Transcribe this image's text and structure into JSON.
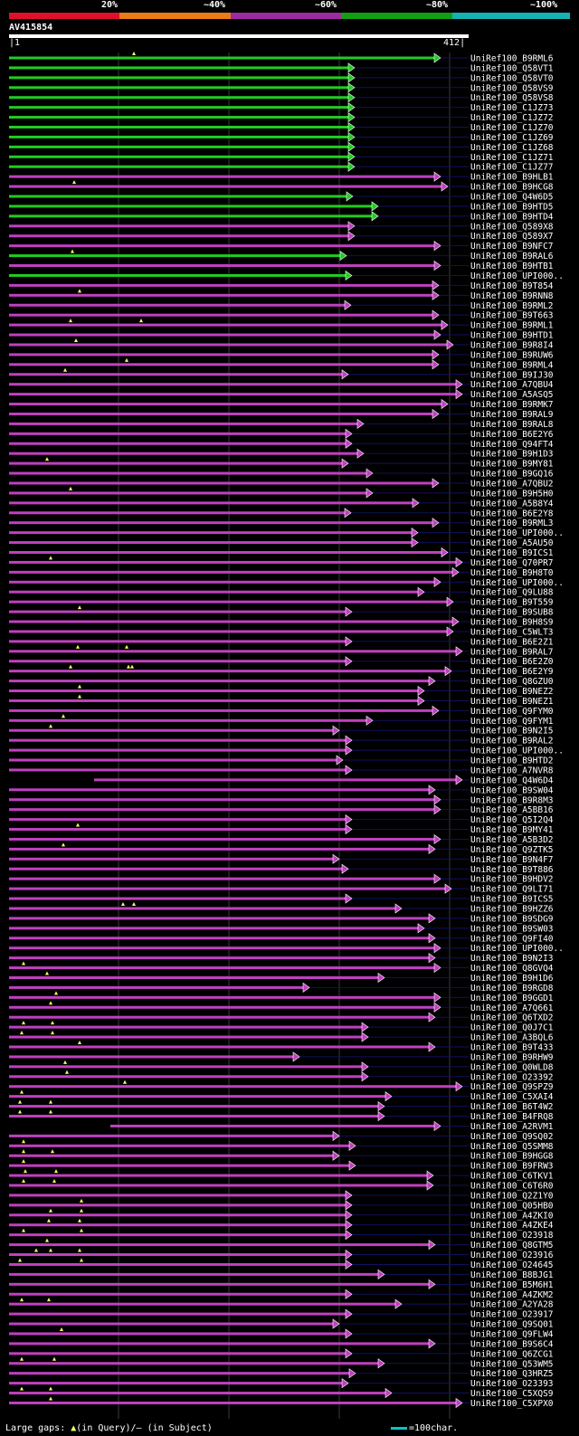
{
  "legend": {
    "labels": [
      "20%",
      "~40%",
      "~60%",
      "~80%",
      "~100%"
    ],
    "colors": [
      "#e0102a",
      "#ec7a16",
      "#9c2aa0",
      "#12a012",
      "#14b4b4"
    ]
  },
  "query": {
    "id": "AV415854",
    "start": "1",
    "end": "412"
  },
  "colors": {
    "green": "#22cc22",
    "magenta": "#c040c0",
    "gap": "#ffff66",
    "dim": "#101060"
  },
  "hits": [
    {
      "id": "UniRef100_B9RML6",
      "c": "g",
      "e": 480,
      "t": [
        148
      ]
    },
    {
      "id": "UniRef100_Q58VT1",
      "c": "g",
      "e": 385
    },
    {
      "id": "UniRef100_Q58VT0",
      "c": "g",
      "e": 385
    },
    {
      "id": "UniRef100_Q58VS9",
      "c": "g",
      "e": 385
    },
    {
      "id": "UniRef100_Q58VS8",
      "c": "g",
      "e": 385
    },
    {
      "id": "UniRef100_C1JZ73",
      "c": "g",
      "e": 385
    },
    {
      "id": "UniRef100_C1JZ72",
      "c": "g",
      "e": 385
    },
    {
      "id": "UniRef100_C1JZ70",
      "c": "g",
      "e": 385
    },
    {
      "id": "UniRef100_C1JZ69",
      "c": "g",
      "e": 385
    },
    {
      "id": "UniRef100_C1JZ68",
      "c": "g",
      "e": 385
    },
    {
      "id": "UniRef100_C1JZ71",
      "c": "g",
      "e": 385
    },
    {
      "id": "UniRef100_C1JZ77",
      "c": "g",
      "e": 385
    },
    {
      "id": "UniRef100_B9HLB1",
      "c": "m",
      "e": 480
    },
    {
      "id": "UniRef100_B9HCG8",
      "c": "m",
      "e": 488,
      "t": [
        82
      ]
    },
    {
      "id": "UniRef100_Q4W6D5",
      "c": "g",
      "e": 383
    },
    {
      "id": "UniRef100_B9HTD5",
      "c": "g",
      "e": 411
    },
    {
      "id": "UniRef100_B9HTD4",
      "c": "g",
      "e": 411
    },
    {
      "id": "UniRef100_Q589X8",
      "c": "m",
      "e": 385
    },
    {
      "id": "UniRef100_Q589X7",
      "c": "m",
      "e": 385
    },
    {
      "id": "UniRef100_B9NFC7",
      "c": "m",
      "e": 480
    },
    {
      "id": "UniRef100_B9RAL6",
      "c": "g",
      "e": 376,
      "t": [
        80
      ]
    },
    {
      "id": "UniRef100_B9HTB1",
      "c": "m",
      "e": 480
    },
    {
      "id": "UniRef100_UPI000..",
      "c": "g",
      "e": 382
    },
    {
      "id": "UniRef100_B9T854",
      "c": "m",
      "e": 478
    },
    {
      "id": "UniRef100_B9RNN8",
      "c": "m",
      "e": 478,
      "t": [
        88
      ]
    },
    {
      "id": "UniRef100_B9RML2",
      "c": "m",
      "e": 381
    },
    {
      "id": "UniRef100_B9T663",
      "c": "m",
      "e": 478
    },
    {
      "id": "UniRef100_B9RML1",
      "c": "m",
      "e": 488,
      "t": [
        78,
        156
      ]
    },
    {
      "id": "UniRef100_B9HTD1",
      "c": "m",
      "e": 480
    },
    {
      "id": "UniRef100_B9R8I4",
      "c": "m",
      "e": 494,
      "t": [
        84
      ]
    },
    {
      "id": "UniRef100_B9RUW6",
      "c": "m",
      "e": 478
    },
    {
      "id": "UniRef100_B9RML4",
      "c": "m",
      "e": 478,
      "t": [
        140
      ]
    },
    {
      "id": "UniRef100_B9IJ30",
      "c": "m",
      "e": 378,
      "t": [
        72
      ]
    },
    {
      "id": "UniRef100_A7QBU4",
      "c": "m",
      "e": 504
    },
    {
      "id": "UniRef100_A5ASQ5",
      "c": "m",
      "e": 504
    },
    {
      "id": "UniRef100_B9RMK7",
      "c": "m",
      "e": 488
    },
    {
      "id": "UniRef100_B9RAL9",
      "c": "m",
      "e": 478
    },
    {
      "id": "UniRef100_B9RAL8",
      "c": "m",
      "e": 395
    },
    {
      "id": "UniRef100_B6E2Y6",
      "c": "m",
      "e": 382
    },
    {
      "id": "UniRef100_Q94FT4",
      "c": "m",
      "e": 382
    },
    {
      "id": "UniRef100_B9H1D3",
      "c": "m",
      "e": 395
    },
    {
      "id": "UniRef100_B9MY81",
      "c": "m",
      "e": 378,
      "t": [
        52
      ]
    },
    {
      "id": "UniRef100_B9GQ16",
      "c": "m",
      "e": 405
    },
    {
      "id": "UniRef100_A7QBU2",
      "c": "m",
      "e": 478
    },
    {
      "id": "UniRef100_B9H5H0",
      "c": "m",
      "e": 405,
      "t": [
        78
      ]
    },
    {
      "id": "UniRef100_A5B8Y4",
      "c": "m",
      "e": 456
    },
    {
      "id": "UniRef100_B6E2Y8",
      "c": "m",
      "e": 381
    },
    {
      "id": "UniRef100_B9RML3",
      "c": "m",
      "e": 478
    },
    {
      "id": "UniRef100_UPI000..",
      "c": "m",
      "e": 455
    },
    {
      "id": "UniRef100_A5AU50",
      "c": "m",
      "e": 455
    },
    {
      "id": "UniRef100_B9ICS1",
      "c": "m",
      "e": 488
    },
    {
      "id": "UniRef100_Q70PR7",
      "c": "m",
      "e": 504,
      "t": [
        56
      ]
    },
    {
      "id": "UniRef100_B9H8T0",
      "c": "m",
      "e": 500
    },
    {
      "id": "UniRef100_UPI000..",
      "c": "m",
      "e": 480
    },
    {
      "id": "UniRef100_Q9LU88",
      "c": "m",
      "e": 462
    },
    {
      "id": "UniRef100_B9T559",
      "c": "m",
      "e": 494
    },
    {
      "id": "UniRef100_B9SUB8",
      "c": "m",
      "e": 382,
      "t": [
        88
      ]
    },
    {
      "id": "UniRef100_B9H8S9",
      "c": "m",
      "e": 500
    },
    {
      "id": "UniRef100_C5WLT3",
      "c": "m",
      "e": 494
    },
    {
      "id": "UniRef100_B6E2Z1",
      "c": "m",
      "e": 382
    },
    {
      "id": "UniRef100_B9RAL7",
      "c": "m",
      "e": 504,
      "t": [
        86,
        140
      ]
    },
    {
      "id": "UniRef100_B6E2Z0",
      "c": "m",
      "e": 382
    },
    {
      "id": "UniRef100_B6E2Y9",
      "c": "m",
      "e": 492,
      "t": [
        78,
        142,
        146
      ]
    },
    {
      "id": "UniRef100_Q8GZU0",
      "c": "m",
      "e": 474
    },
    {
      "id": "UniRef100_B9NEZ2",
      "c": "m",
      "e": 462,
      "t": [
        88
      ]
    },
    {
      "id": "UniRef100_B9NEZ1",
      "c": "m",
      "e": 462,
      "t": [
        88
      ]
    },
    {
      "id": "UniRef100_Q9FYM0",
      "c": "m",
      "e": 478
    },
    {
      "id": "UniRef100_Q9FYM1",
      "c": "m",
      "e": 405,
      "t": [
        70
      ]
    },
    {
      "id": "UniRef100_B9N2I5",
      "c": "m",
      "e": 368,
      "t": [
        56
      ]
    },
    {
      "id": "UniRef100_B9RAL2",
      "c": "m",
      "e": 382
    },
    {
      "id": "UniRef100_UPI000..",
      "c": "m",
      "e": 382
    },
    {
      "id": "UniRef100_B9HTD2",
      "c": "m",
      "e": 372
    },
    {
      "id": "UniRef100_A7NVR8",
      "c": "m",
      "e": 382
    },
    {
      "id": "UniRef100_Q4W6D4",
      "c": "m",
      "s": 104,
      "e": 504
    },
    {
      "id": "UniRef100_B9SW04",
      "c": "m",
      "e": 474
    },
    {
      "id": "UniRef100_B9R8M3",
      "c": "m",
      "e": 480
    },
    {
      "id": "UniRef100_A5BB16",
      "c": "m",
      "e": 480
    },
    {
      "id": "UniRef100_Q5I2Q4",
      "c": "m",
      "e": 382
    },
    {
      "id": "UniRef100_B9MY41",
      "c": "m",
      "e": 382,
      "t": [
        86
      ]
    },
    {
      "id": "UniRef100_A5B3D2",
      "c": "m",
      "e": 480
    },
    {
      "id": "UniRef100_Q9ZTK5",
      "c": "m",
      "e": 474,
      "t": [
        70
      ]
    },
    {
      "id": "UniRef100_B9N4F7",
      "c": "m",
      "e": 368
    },
    {
      "id": "UniRef100_B9T886",
      "c": "m",
      "e": 378
    },
    {
      "id": "UniRef100_B9HDV2",
      "c": "m",
      "e": 480
    },
    {
      "id": "UniRef100_Q9LI71",
      "c": "m",
      "e": 492
    },
    {
      "id": "UniRef100_B9ICS5",
      "c": "m",
      "e": 382
    },
    {
      "id": "UniRef100_B9HZZ6",
      "c": "m",
      "e": 437,
      "t": [
        136,
        148
      ]
    },
    {
      "id": "UniRef100_B9SDG9",
      "c": "m",
      "e": 474
    },
    {
      "id": "UniRef100_B9SW03",
      "c": "m",
      "e": 462
    },
    {
      "id": "UniRef100_Q9FI40",
      "c": "m",
      "e": 474
    },
    {
      "id": "UniRef100_UPI000..",
      "c": "m",
      "e": 480
    },
    {
      "id": "UniRef100_B9N2I3",
      "c": "m",
      "e": 474
    },
    {
      "id": "UniRef100_Q8GVQ4",
      "c": "m",
      "e": 480,
      "t": [
        26
      ]
    },
    {
      "id": "UniRef100_B9H1D6",
      "c": "m",
      "e": 418,
      "t": [
        52
      ]
    },
    {
      "id": "UniRef100_B9RGD8",
      "c": "m",
      "e": 335
    },
    {
      "id": "UniRef100_B9GGD1",
      "c": "m",
      "e": 480,
      "t": [
        62
      ]
    },
    {
      "id": "UniRef100_A7Q661",
      "c": "m",
      "e": 480,
      "t": [
        56
      ]
    },
    {
      "id": "UniRef100_Q6TXD2",
      "c": "m",
      "e": 474
    },
    {
      "id": "UniRef100_Q0J7C1",
      "c": "m",
      "e": 400,
      "t": [
        26,
        58
      ]
    },
    {
      "id": "UniRef100_A3BQL6",
      "c": "m",
      "e": 400,
      "t": [
        24,
        58
      ]
    },
    {
      "id": "UniRef100_B9T433",
      "c": "m",
      "e": 474,
      "t": [
        88
      ]
    },
    {
      "id": "UniRef100_B9RHW9",
      "c": "m",
      "e": 324
    },
    {
      "id": "UniRef100_Q0WLD8",
      "c": "m",
      "e": 400,
      "t": [
        72
      ]
    },
    {
      "id": "UniRef100_O23392",
      "c": "m",
      "e": 400,
      "t": [
        74
      ]
    },
    {
      "id": "UniRef100_Q9SPZ9",
      "c": "m",
      "e": 504,
      "t": [
        138
      ]
    },
    {
      "id": "UniRef100_C5XAI4",
      "c": "m",
      "e": 426,
      "t": [
        24
      ]
    },
    {
      "id": "UniRef100_B6T4W2",
      "c": "m",
      "e": 418,
      "t": [
        22,
        56
      ]
    },
    {
      "id": "UniRef100_B4FRQ8",
      "c": "m",
      "e": 418,
      "t": [
        22,
        56
      ]
    },
    {
      "id": "UniRef100_A2RVM1",
      "c": "m",
      "s": 122,
      "e": 480
    },
    {
      "id": "UniRef100_Q9SQ02",
      "c": "m",
      "e": 368
    },
    {
      "id": "UniRef100_Q5SMM8",
      "c": "m",
      "e": 386,
      "t": [
        26
      ]
    },
    {
      "id": "UniRef100_B9HGG8",
      "c": "m",
      "e": 368,
      "t": [
        26,
        58
      ]
    },
    {
      "id": "UniRef100_B9FRW3",
      "c": "m",
      "e": 386,
      "t": [
        26
      ]
    },
    {
      "id": "UniRef100_C6TKV1",
      "c": "m",
      "e": 472,
      "t": [
        28,
        62
      ]
    },
    {
      "id": "UniRef100_C6T6R0",
      "c": "m",
      "e": 472,
      "t": [
        26,
        60
      ]
    },
    {
      "id": "UniRef100_Q2Z1Y0",
      "c": "m",
      "e": 382
    },
    {
      "id": "UniRef100_Q05HB0",
      "c": "m",
      "e": 382,
      "t": [
        90
      ]
    },
    {
      "id": "UniRef100_A4ZKI0",
      "c": "m",
      "e": 382,
      "t": [
        56,
        90
      ]
    },
    {
      "id": "UniRef100_A4ZKE4",
      "c": "m",
      "e": 382,
      "t": [
        54,
        88
      ]
    },
    {
      "id": "UniRef100_O23918",
      "c": "m",
      "e": 382,
      "t": [
        26,
        90
      ]
    },
    {
      "id": "UniRef100_Q8GTM5",
      "c": "m",
      "e": 474,
      "t": [
        52
      ]
    },
    {
      "id": "UniRef100_O23916",
      "c": "m",
      "e": 382,
      "t": [
        40,
        56,
        88
      ]
    },
    {
      "id": "UniRef100_O24645",
      "c": "m",
      "e": 382,
      "t": [
        22,
        90
      ]
    },
    {
      "id": "UniRef100_B8BJG1",
      "c": "m",
      "e": 418
    },
    {
      "id": "UniRef100_B5M6H1",
      "c": "m",
      "e": 474
    },
    {
      "id": "UniRef100_A4ZKM2",
      "c": "m",
      "e": 382
    },
    {
      "id": "UniRef100_A2YA28",
      "c": "m",
      "e": 437,
      "t": [
        24,
        54
      ]
    },
    {
      "id": "UniRef100_O23917",
      "c": "m",
      "e": 382
    },
    {
      "id": "UniRef100_Q9SQ01",
      "c": "m",
      "e": 368
    },
    {
      "id": "UniRef100_Q9FLW4",
      "c": "m",
      "e": 382,
      "t": [
        68
      ]
    },
    {
      "id": "UniRef100_B9S6C4",
      "c": "m",
      "e": 474
    },
    {
      "id": "UniRef100_Q6ZCG1",
      "c": "m",
      "e": 382
    },
    {
      "id": "UniRef100_Q53WM5",
      "c": "m",
      "e": 418,
      "t": [
        24,
        60
      ]
    },
    {
      "id": "UniRef100_Q3HRZ5",
      "c": "m",
      "e": 386
    },
    {
      "id": "UniRef100_O23393",
      "c": "m",
      "e": 378
    },
    {
      "id": "UniRef100_C5XQS9",
      "c": "m",
      "e": 426,
      "t": [
        24,
        56
      ]
    },
    {
      "id": "UniRef100_C5XPX0",
      "c": "m",
      "e": 504,
      "t": [
        56
      ]
    }
  ],
  "footer": {
    "large_gaps_prefix": "Large gaps: ",
    "triangle": "▲",
    "query_text": "(in Query)/",
    "dash": "–",
    "subject_text": " (in Subject)",
    "scale_text": "=100char."
  }
}
